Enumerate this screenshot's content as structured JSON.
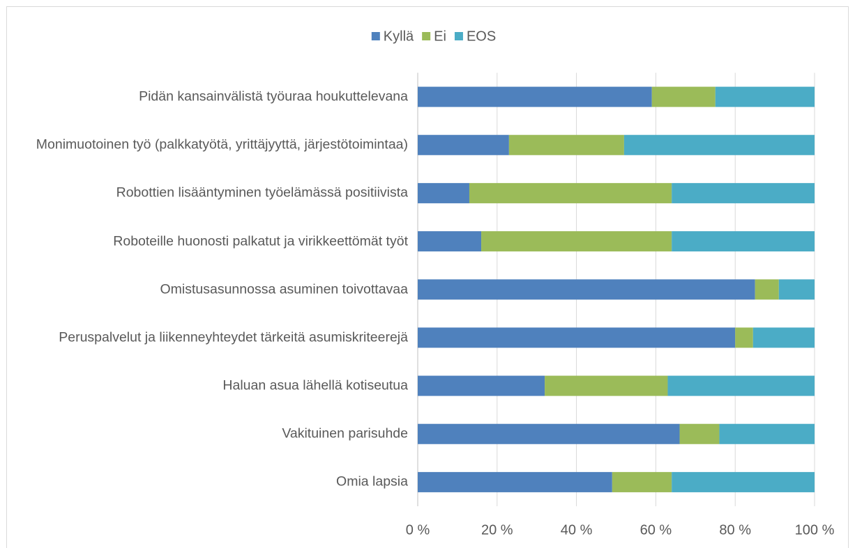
{
  "chart_data": {
    "type": "stacked_barh",
    "categories": [
      "Pidän kansainvälistä työuraa houkuttelevana",
      "Monimuotoinen työ (palkkatyötä, yrittäjyyttä, järjestötoimintaa)",
      "Robottien lisääntyminen työelämässä positiivista",
      "Roboteille huonosti palkatut ja virikkeettömät työt",
      "Omistusasunnossa asuminen toivottavaa",
      "Peruspalvelut ja liikenneyhteydet tärkeitä asumiskriteerejä",
      "Haluan asua lähellä kotiseutua",
      "Vakituinen parisuhde",
      "Omia lapsia"
    ],
    "series": [
      {
        "name": "Kyllä",
        "color": "#4f81bd",
        "values": [
          59,
          23,
          13,
          16,
          85,
          80,
          32,
          66,
          49
        ]
      },
      {
        "name": "Ei",
        "color": "#9bbb59",
        "values": [
          16,
          29,
          51,
          48,
          6,
          4.5,
          31,
          10,
          15
        ]
      },
      {
        "name": "EOS",
        "color": "#4bacc6",
        "values": [
          25,
          48,
          36,
          36,
          9,
          15.5,
          37,
          24,
          36
        ]
      }
    ],
    "xlim": [
      0,
      100
    ],
    "xticks": [
      {
        "value": 0,
        "label": "0 %"
      },
      {
        "value": 20,
        "label": "20 %"
      },
      {
        "value": 40,
        "label": "40 %"
      },
      {
        "value": 60,
        "label": "60 %"
      },
      {
        "value": 80,
        "label": "80 %"
      },
      {
        "value": 100,
        "label": "100 %"
      }
    ],
    "grid": true,
    "legend": "top"
  }
}
